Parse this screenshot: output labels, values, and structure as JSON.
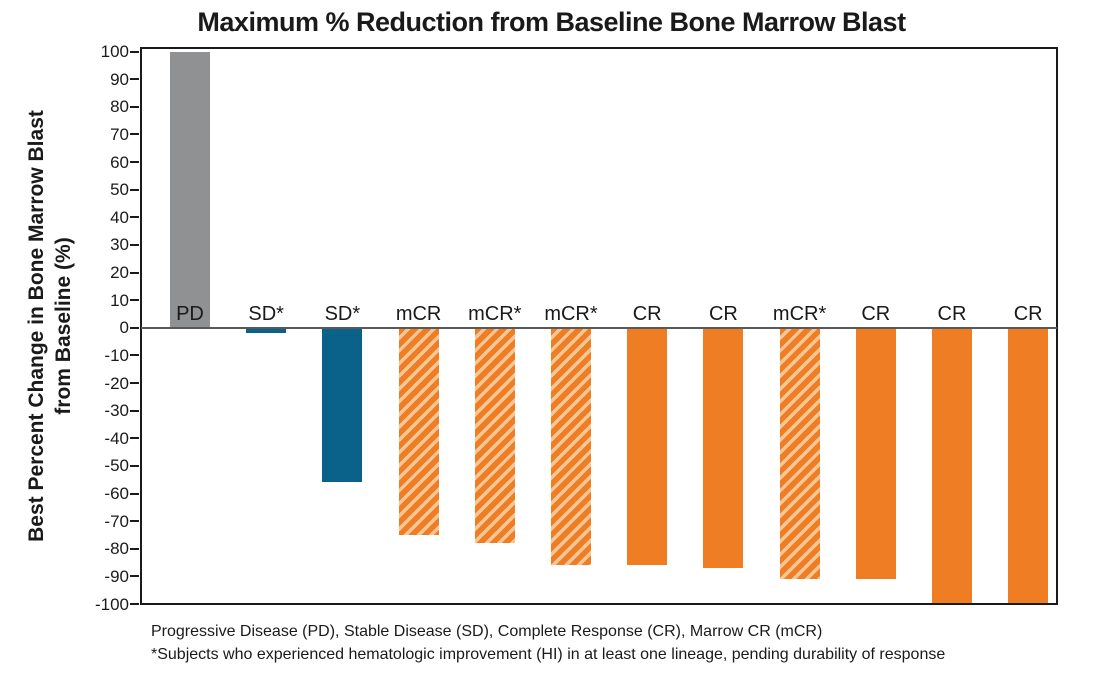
{
  "chart_data": {
    "type": "bar",
    "title": "Maximum % Reduction from Baseline Bone Marrow Blast",
    "ylabel_line1": "Best Percent Change in Bone Marrow Blast",
    "ylabel_line2": "from Baseline (%)",
    "xlabel": "",
    "ylim": [
      -100,
      100
    ],
    "grid": false,
    "legend": "none",
    "yticks": [
      100,
      90,
      80,
      70,
      60,
      50,
      40,
      30,
      20,
      10,
      0,
      -10,
      -20,
      -30,
      -40,
      -50,
      -60,
      -70,
      -80,
      -90,
      -100
    ],
    "bars": [
      {
        "label": "PD",
        "value": 100,
        "style": "gray"
      },
      {
        "label": "SD*",
        "value": -2,
        "style": "blue"
      },
      {
        "label": "SD*",
        "value": -56,
        "style": "blue"
      },
      {
        "label": "mCR",
        "value": -75,
        "style": "orange-hatched"
      },
      {
        "label": "mCR*",
        "value": -78,
        "style": "orange-hatched"
      },
      {
        "label": "mCR*",
        "value": -86,
        "style": "orange-hatched"
      },
      {
        "label": "CR",
        "value": -86,
        "style": "orange-solid"
      },
      {
        "label": "CR",
        "value": -87,
        "style": "orange-solid"
      },
      {
        "label": "mCR*",
        "value": -91,
        "style": "orange-hatched"
      },
      {
        "label": "CR",
        "value": -91,
        "style": "orange-solid"
      },
      {
        "label": "CR",
        "value": -100,
        "style": "orange-solid"
      },
      {
        "label": "CR",
        "value": -100,
        "style": "orange-solid"
      }
    ],
    "colors": {
      "gray": "#8F9193",
      "blue": "#0A628B",
      "orange": "#EF7D23",
      "orange_light": "#F6C696",
      "zero_line": "#58595B",
      "frame": "#1A1A1A"
    },
    "footnote_line1": "Progressive Disease (PD), Stable Disease (SD), Complete Response (CR), Marrow CR (mCR)",
    "footnote_line2": "*Subjects who experienced hematologic improvement (HI) in at least one lineage, pending durability of response"
  }
}
